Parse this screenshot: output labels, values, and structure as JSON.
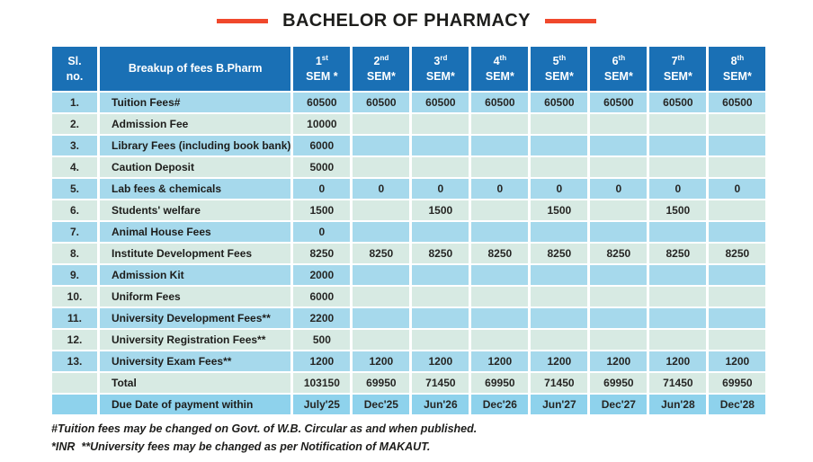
{
  "title": "BACHELOR OF PHARMACY",
  "colors": {
    "header_blue": "#1a70b5",
    "row_blue": "#a6d9ec",
    "row_pale": "#d7eae3",
    "due_row_blue": "#8ed2ec",
    "accent_dash": "#f0482c",
    "text_dark": "#1d1d1b"
  },
  "table": {
    "sl_header_line1": "Sl.",
    "sl_header_line2": "no.",
    "breakup_header": "Breakup of fees B.Pharm",
    "sem_headers": [
      {
        "ordinal": "1",
        "suffix": "st",
        "label": "SEM *"
      },
      {
        "ordinal": "2",
        "suffix": "nd",
        "label": "SEM*"
      },
      {
        "ordinal": "3",
        "suffix": "rd",
        "label": "SEM*"
      },
      {
        "ordinal": "4",
        "suffix": "th",
        "label": "SEM*"
      },
      {
        "ordinal": "5",
        "suffix": "th",
        "label": "SEM*"
      },
      {
        "ordinal": "6",
        "suffix": "th",
        "label": "SEM*"
      },
      {
        "ordinal": "7",
        "suffix": "th",
        "label": "SEM*"
      },
      {
        "ordinal": "8",
        "suffix": "th",
        "label": "SEM*"
      }
    ],
    "rows": [
      {
        "sl": "1.",
        "label": "Tuition Fees#",
        "values": [
          "60500",
          "60500",
          "60500",
          "60500",
          "60500",
          "60500",
          "60500",
          "60500"
        ]
      },
      {
        "sl": "2.",
        "label": "Admission Fee",
        "values": [
          "10000",
          "",
          "",
          "",
          "",
          "",
          "",
          ""
        ]
      },
      {
        "sl": "3.",
        "label": "Library Fees (including book bank)",
        "values": [
          "6000",
          "",
          "",
          "",
          "",
          "",
          "",
          ""
        ]
      },
      {
        "sl": "4.",
        "label": "Caution Deposit",
        "values": [
          "5000",
          "",
          "",
          "",
          "",
          "",
          "",
          ""
        ]
      },
      {
        "sl": "5.",
        "label": "Lab fees & chemicals",
        "values": [
          "0",
          "0",
          "0",
          "0",
          "0",
          "0",
          "0",
          "0"
        ]
      },
      {
        "sl": "6.",
        "label": "Students' welfare",
        "values": [
          "1500",
          "",
          "1500",
          "",
          "1500",
          "",
          "1500",
          ""
        ]
      },
      {
        "sl": "7.",
        "label": "Animal House Fees",
        "values": [
          "0",
          "",
          "",
          "",
          "",
          "",
          "",
          ""
        ]
      },
      {
        "sl": "8.",
        "label": "Institute Development Fees",
        "values": [
          "8250",
          "8250",
          "8250",
          "8250",
          "8250",
          "8250",
          "8250",
          "8250"
        ]
      },
      {
        "sl": "9.",
        "label": "Admission Kit",
        "values": [
          "2000",
          "",
          "",
          "",
          "",
          "",
          "",
          ""
        ]
      },
      {
        "sl": "10.",
        "label": "Uniform Fees",
        "values": [
          "6000",
          "",
          "",
          "",
          "",
          "",
          "",
          ""
        ]
      },
      {
        "sl": "11.",
        "label": "University Development Fees**",
        "values": [
          "2200",
          "",
          "",
          "",
          "",
          "",
          "",
          ""
        ]
      },
      {
        "sl": "12.",
        "label": "University Registration Fees**",
        "values": [
          "500",
          "",
          "",
          "",
          "",
          "",
          "",
          ""
        ]
      },
      {
        "sl": "13.",
        "label": "University Exam Fees**",
        "values": [
          "1200",
          "1200",
          "1200",
          "1200",
          "1200",
          "1200",
          "1200",
          "1200"
        ]
      }
    ],
    "total": {
      "label": "Total",
      "values": [
        "103150",
        "69950",
        "71450",
        "69950",
        "71450",
        "69950",
        "71450",
        "69950"
      ]
    },
    "due": {
      "label": "Due Date of payment within",
      "values": [
        "July'25",
        "Dec'25",
        "Jun'26",
        "Dec'26",
        "Jun'27",
        "Dec'27",
        "Jun'28",
        "Dec'28"
      ]
    }
  },
  "footnotes": [
    "#Tuition fees may be changed on Govt. of W.B. Circular as and when published.",
    "*INR  **University fees may be changed as per Notification of MAKAUT."
  ]
}
